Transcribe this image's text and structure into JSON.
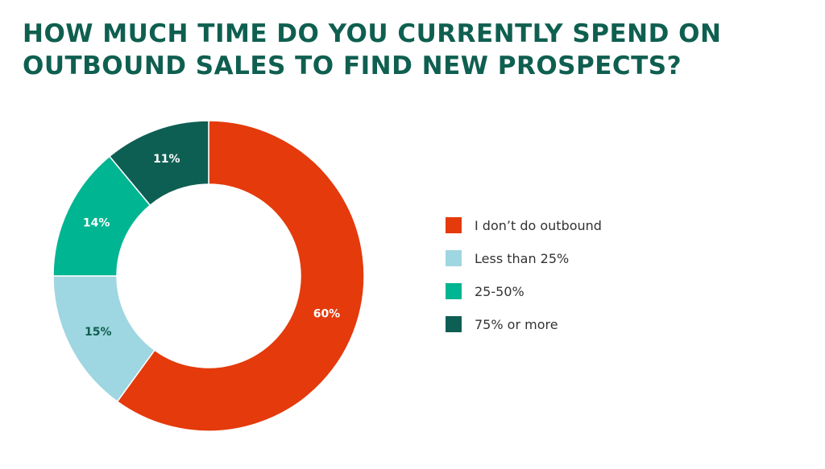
{
  "title": {
    "line1": "HOW MUCH TIME DO YOU CURRENTLY SPEND ON",
    "line2": "OUTBOUND SALES TO FIND NEW PROSPECTS?"
  },
  "chart_data": {
    "type": "pie",
    "title": "HOW MUCH TIME DO YOU CURRENTLY SPEND ON OUTBOUND SALES TO FIND NEW PROSPECTS?",
    "style": "donut",
    "legend_position": "right",
    "slices": [
      {
        "label": "I don’t do outbound",
        "value": 60,
        "value_label": "60%",
        "color": "#e43a0c",
        "label_color": "#ffffff"
      },
      {
        "label": "Less than 25%",
        "value": 15,
        "value_label": "15%",
        "color": "#9ed6e1",
        "label_color": "#0f5f50"
      },
      {
        "label": "25-50%",
        "value": 14,
        "value_label": "14%",
        "color": "#00b591",
        "label_color": "#ffffff"
      },
      {
        "label": "75% or more",
        "value": 11,
        "value_label": "11%",
        "color": "#0e5f53",
        "label_color": "#ffffff"
      }
    ]
  }
}
